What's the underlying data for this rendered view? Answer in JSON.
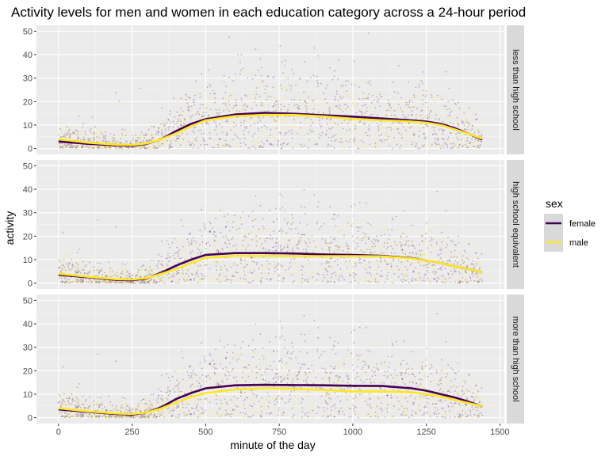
{
  "chart_data": {
    "type": "scatter",
    "title": "Activity levels for men and women in each education category across a 24-hour period",
    "xlabel": "minute of the day",
    "ylabel": "activity",
    "xlim": [
      -75,
      1515
    ],
    "ylim": [
      -2.5,
      52.5
    ],
    "x_ticks": [
      0,
      250,
      500,
      750,
      1000,
      1250,
      1500
    ],
    "y_ticks": [
      0,
      10,
      20,
      30,
      40,
      50
    ],
    "grid": true,
    "legend": {
      "title": "sex",
      "position": "right",
      "entries": [
        {
          "name": "female",
          "color": "#440154"
        },
        {
          "name": "male",
          "color": "#FDE725"
        }
      ]
    },
    "facets": [
      "less than high school",
      "high school equivalent",
      "more than high school"
    ],
    "smooth_x": [
      0,
      100,
      200,
      250,
      300,
      350,
      400,
      450,
      500,
      600,
      700,
      800,
      900,
      1000,
      1100,
      1200,
      1250,
      1300,
      1350,
      1400,
      1440
    ],
    "series": [
      {
        "facet": "less than high school",
        "name": "female",
        "values": [
          3,
          2,
          1.3,
          1.2,
          2,
          4,
          7.5,
          10.5,
          12.5,
          14.5,
          15.2,
          14.8,
          14.2,
          13.6,
          12.8,
          12,
          11.5,
          10.5,
          8.5,
          6,
          3.8
        ]
      },
      {
        "facet": "less than high school",
        "name": "male",
        "values": [
          4,
          2.5,
          1.6,
          1.5,
          2.2,
          4,
          6.5,
          9.5,
          12,
          13.8,
          14.3,
          14.3,
          13.7,
          12.7,
          12,
          11.5,
          11,
          10,
          8,
          6,
          4.2
        ]
      },
      {
        "facet": "high school equivalent",
        "name": "female",
        "values": [
          3.5,
          2.5,
          1.3,
          1.2,
          2,
          4.5,
          7.5,
          10,
          12,
          12.8,
          12.8,
          12.6,
          12.2,
          12,
          11.6,
          10.6,
          9.6,
          8.5,
          7,
          5.8,
          4.5
        ]
      },
      {
        "facet": "high school equivalent",
        "name": "male",
        "values": [
          4,
          2.7,
          1.6,
          1.5,
          2.2,
          4,
          6,
          8.5,
          10.8,
          11.6,
          11.6,
          11.5,
          11.5,
          11.5,
          11.4,
          10.5,
          9.6,
          8.5,
          7,
          5.8,
          4.5
        ]
      },
      {
        "facet": "more than high school",
        "name": "female",
        "values": [
          3.5,
          2.5,
          1.5,
          1.3,
          2.2,
          4.5,
          8,
          10.5,
          12.5,
          13.8,
          14,
          13.9,
          13.8,
          13.6,
          13.5,
          12.5,
          11.5,
          10,
          8.5,
          6.5,
          4.8
        ]
      },
      {
        "facet": "more than high school",
        "name": "male",
        "values": [
          4,
          2.7,
          1.8,
          1.6,
          2.2,
          4,
          6.5,
          8.8,
          10.5,
          12,
          12.5,
          12.3,
          11.8,
          11.2,
          11.2,
          10.8,
          10,
          9,
          7.5,
          6,
          5
        ]
      }
    ]
  },
  "colors": {
    "panel_background": "#EBEBEB",
    "grid_major": "#FFFFFF",
    "strip_background": "#D9D9D9",
    "female": "#440154",
    "male": "#FDE725"
  }
}
